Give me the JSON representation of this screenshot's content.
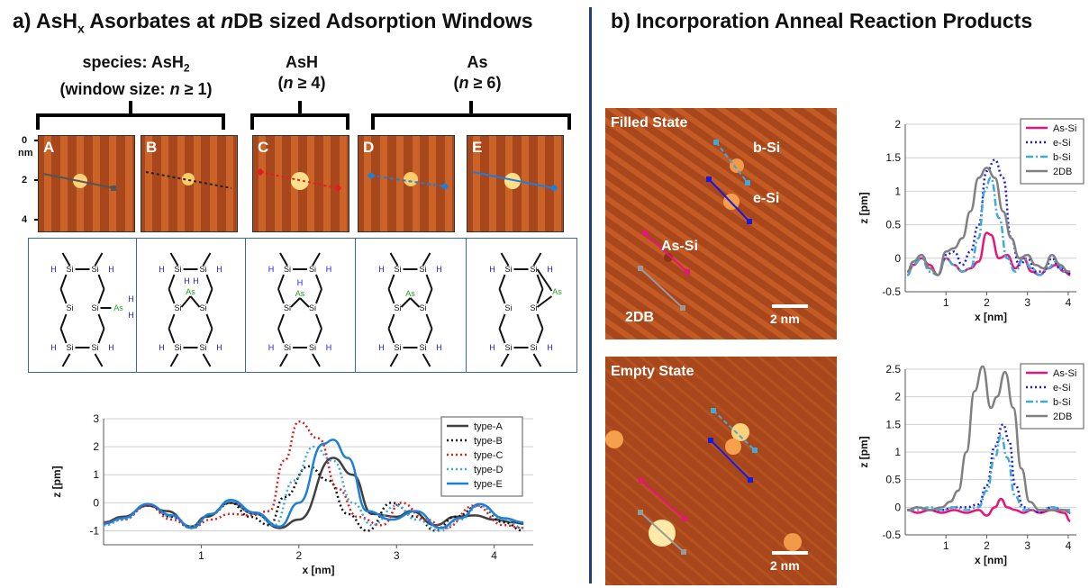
{
  "panel_a": {
    "title_prefix": "a) AsH",
    "title_sub": "x",
    "title_mid": " Asorbates at ",
    "title_n": "n",
    "title_suffix": "DB sized Adsorption Windows",
    "species_groups": [
      {
        "line1_prefix": "species: AsH",
        "line1_sub": "2",
        "line2_prefix": "(window size: ",
        "line2_n": "n",
        "line2_suffix": " ≥ 1)"
      },
      {
        "line1_prefix": "AsH",
        "line1_sub": "",
        "line2_prefix": "(",
        "line2_n": "n",
        "line2_suffix": " ≥ 4)"
      },
      {
        "line1_prefix": "As",
        "line1_sub": "",
        "line2_prefix": "(",
        "line2_n": "n",
        "line2_suffix": " ≥ 6)"
      }
    ],
    "stm_axis": {
      "ticks": [
        "0",
        "2",
        "4"
      ],
      "unit": "nm"
    },
    "stm_panels": [
      "A",
      "B",
      "C",
      "D",
      "E"
    ],
    "schematic_atoms": {
      "si": "Si",
      "h": "H",
      "as": "As"
    }
  },
  "panel_b": {
    "title": "b) Incorporation Anneal Reaction Products",
    "filled_label": "Filled State",
    "empty_label": "Empty State",
    "scale_label": "2 nm",
    "site_labels": [
      "b-Si",
      "e-Si",
      "As-Si",
      "2DB"
    ]
  },
  "colors": {
    "stm_bg": "#a8461c",
    "as_si": "#e6157a",
    "e_si": "#1a1adc",
    "b_si": "#3fa9dc",
    "db2": "#808080",
    "divider": "#1d3f7b"
  },
  "chart_data": [
    {
      "type": "line",
      "xlabel": "x [nm]",
      "ylabel": "z [pm]",
      "xlim": [
        0,
        4.4
      ],
      "ylim": [
        -1.5,
        3
      ],
      "xticks": [
        1,
        2,
        3,
        4
      ],
      "yticks": [
        -1,
        0,
        1,
        2,
        3
      ],
      "legend_position": "top-right",
      "series": [
        {
          "name": "type-A",
          "color": "#404040",
          "dash": "solid",
          "x": [
            0,
            0.2,
            0.45,
            0.65,
            0.9,
            1.05,
            1.3,
            1.55,
            1.8,
            2.0,
            2.35,
            2.55,
            2.75,
            3.0,
            3.15,
            3.4,
            3.6,
            3.8,
            4.0,
            4.2,
            4.3
          ],
          "y": [
            -0.7,
            -0.5,
            -0.1,
            -0.3,
            -0.85,
            -0.5,
            0.0,
            -0.4,
            -0.9,
            -0.6,
            1.6,
            1.0,
            -0.4,
            -0.5,
            -0.3,
            -0.8,
            -0.5,
            -0.45,
            -0.6,
            -0.7,
            -0.75
          ]
        },
        {
          "name": "type-B",
          "color": "#111111",
          "dash": "dot",
          "x": [
            0,
            0.2,
            0.45,
            0.7,
            0.9,
            1.1,
            1.3,
            1.5,
            1.7,
            1.85,
            2.1,
            2.3,
            2.5,
            2.7,
            2.95,
            3.2,
            3.4,
            3.6,
            3.85,
            4.1,
            4.3
          ],
          "y": [
            -0.8,
            -0.6,
            -0.1,
            -0.5,
            -0.9,
            -0.4,
            0.0,
            -0.5,
            -0.8,
            0.2,
            1.3,
            0.8,
            -0.4,
            -1.0,
            0.0,
            -0.5,
            -1.0,
            -0.5,
            -0.1,
            -0.7,
            -1.0
          ]
        },
        {
          "name": "type-C",
          "color": "#e02020",
          "dash": "dot",
          "x": [
            0,
            0.2,
            0.45,
            0.7,
            0.9,
            1.1,
            1.3,
            1.5,
            1.7,
            1.85,
            2.0,
            2.2,
            2.4,
            2.6,
            2.85,
            3.05,
            3.3,
            3.5,
            3.8,
            4.1,
            4.3
          ],
          "y": [
            -0.7,
            -0.6,
            -0.1,
            -0.6,
            -0.9,
            -0.6,
            -0.4,
            -0.45,
            -0.3,
            1.5,
            2.9,
            2.3,
            0.5,
            -0.5,
            -0.8,
            0.0,
            -0.6,
            -0.9,
            -0.1,
            -0.8,
            -0.9
          ]
        },
        {
          "name": "type-D",
          "color": "#3fa9dc",
          "dash": "dot",
          "x": [
            0,
            0.2,
            0.45,
            0.7,
            0.9,
            1.1,
            1.3,
            1.55,
            1.75,
            1.95,
            2.15,
            2.35,
            2.55,
            2.75,
            3.0,
            3.2,
            3.45,
            3.65,
            3.85,
            4.1,
            4.3
          ],
          "y": [
            -0.8,
            -0.6,
            -0.05,
            -0.5,
            -0.85,
            -0.4,
            0.05,
            -0.4,
            -0.8,
            0.8,
            2.0,
            1.5,
            0.0,
            -0.8,
            -0.1,
            -0.6,
            -1.0,
            -0.6,
            -0.1,
            -0.6,
            -0.9
          ]
        },
        {
          "name": "type-E",
          "color": "#1e7fd8",
          "dash": "solid",
          "x": [
            0,
            0.2,
            0.45,
            0.7,
            0.9,
            1.1,
            1.3,
            1.55,
            1.8,
            2.0,
            2.25,
            2.35,
            2.5,
            2.7,
            2.95,
            3.2,
            3.45,
            3.65,
            3.85,
            4.1,
            4.3
          ],
          "y": [
            -0.75,
            -0.55,
            -0.05,
            -0.45,
            -0.9,
            -0.4,
            0.1,
            -0.35,
            -0.85,
            0.0,
            2.1,
            2.25,
            1.6,
            -0.3,
            -0.6,
            -0.3,
            -0.9,
            -0.55,
            -0.05,
            -0.55,
            -0.7
          ]
        }
      ]
    },
    {
      "type": "line",
      "xlabel": "x [nm]",
      "ylabel": "z [pm]",
      "xlim": [
        0,
        4.2
      ],
      "ylim": [
        -0.5,
        2
      ],
      "xticks": [
        1,
        2,
        3,
        4
      ],
      "yticks": [
        -0.5,
        0,
        0.5,
        1,
        1.5,
        2
      ],
      "legend_position": "top-right",
      "series": [
        {
          "name": "As-Si",
          "color": "#e6157a",
          "dash": "solid",
          "x": [
            0.05,
            0.2,
            0.4,
            0.6,
            0.8,
            1.0,
            1.2,
            1.4,
            1.6,
            1.8,
            2.0,
            2.1,
            2.3,
            2.5,
            2.7,
            2.9,
            3.1,
            3.3,
            3.5,
            3.7,
            3.9,
            4.05
          ],
          "y": [
            -0.25,
            -0.1,
            0.0,
            -0.1,
            -0.25,
            0.0,
            -0.1,
            -0.2,
            -0.15,
            -0.05,
            0.38,
            0.35,
            0.0,
            0.05,
            -0.15,
            0.0,
            -0.2,
            -0.25,
            -0.15,
            -0.1,
            -0.2,
            -0.25
          ]
        },
        {
          "name": "e-Si",
          "color": "#1a1adc",
          "dash": "dot",
          "x": [
            0.05,
            0.2,
            0.4,
            0.6,
            0.8,
            1.0,
            1.2,
            1.4,
            1.6,
            1.8,
            2.0,
            2.2,
            2.4,
            2.6,
            2.8,
            3.0,
            3.2,
            3.4,
            3.6,
            3.8,
            4.0,
            4.05
          ],
          "y": [
            -0.2,
            -0.05,
            0.05,
            -0.15,
            -0.25,
            0.05,
            0.1,
            -0.1,
            0.1,
            0.5,
            1.3,
            1.47,
            1.2,
            0.3,
            -0.1,
            0.0,
            -0.2,
            -0.2,
            0.0,
            -0.15,
            -0.2,
            -0.25
          ]
        },
        {
          "name": "b-Si",
          "color": "#3fa9dc",
          "dash": "dashdot",
          "x": [
            0.05,
            0.2,
            0.4,
            0.6,
            0.8,
            1.0,
            1.2,
            1.4,
            1.6,
            1.8,
            1.95,
            2.1,
            2.3,
            2.5,
            2.7,
            2.9,
            3.1,
            3.3,
            3.5,
            3.7,
            3.9,
            4.05
          ],
          "y": [
            -0.25,
            -0.1,
            0.0,
            -0.2,
            -0.25,
            0.0,
            -0.1,
            -0.2,
            -0.15,
            0.3,
            1.0,
            1.2,
            0.6,
            0.0,
            -0.2,
            0.0,
            -0.15,
            -0.25,
            -0.15,
            -0.05,
            -0.2,
            -0.2
          ]
        },
        {
          "name": "2DB",
          "color": "#808080",
          "dash": "solid",
          "x": [
            0.05,
            0.2,
            0.4,
            0.6,
            0.8,
            1.0,
            1.2,
            1.4,
            1.6,
            1.8,
            2.0,
            2.2,
            2.4,
            2.6,
            2.8,
            3.0,
            3.2,
            3.4,
            3.6,
            3.8,
            4.0,
            4.05
          ],
          "y": [
            -0.2,
            -0.05,
            0.05,
            -0.15,
            -0.25,
            0.1,
            0.15,
            0.3,
            0.7,
            1.2,
            1.35,
            1.2,
            0.7,
            0.3,
            0.0,
            0.05,
            -0.1,
            -0.15,
            0.05,
            -0.1,
            -0.2,
            -0.2
          ]
        }
      ]
    },
    {
      "type": "line",
      "xlabel": "x [nm]",
      "ylabel": "z [pm]",
      "xlim": [
        0,
        4.2
      ],
      "ylim": [
        -0.5,
        2.5
      ],
      "xticks": [
        1,
        2,
        3,
        4
      ],
      "yticks": [
        -0.5,
        0,
        0.5,
        1,
        1.5,
        2,
        2.5
      ],
      "legend_position": "top-right",
      "series": [
        {
          "name": "As-Si",
          "color": "#e6157a",
          "dash": "solid",
          "x": [
            0.05,
            0.3,
            0.6,
            0.9,
            1.2,
            1.5,
            1.8,
            2.0,
            2.2,
            2.35,
            2.5,
            2.7,
            2.9,
            3.1,
            3.3,
            3.6,
            3.9,
            4.05
          ],
          "y": [
            -0.05,
            -0.1,
            -0.05,
            -0.1,
            -0.05,
            -0.1,
            -0.05,
            -0.15,
            0.0,
            0.15,
            0.0,
            -0.05,
            -0.1,
            -0.05,
            -0.1,
            -0.05,
            -0.1,
            -0.25
          ]
        },
        {
          "name": "e-Si",
          "color": "#1a1adc",
          "dash": "dot",
          "x": [
            0.05,
            0.3,
            0.6,
            0.9,
            1.2,
            1.5,
            1.8,
            2.0,
            2.2,
            2.4,
            2.55,
            2.7,
            2.9,
            3.1,
            3.3,
            3.6,
            3.9,
            4.05
          ],
          "y": [
            -0.05,
            0.0,
            -0.05,
            -0.05,
            0.0,
            0.0,
            0.05,
            0.4,
            1.1,
            1.5,
            1.2,
            0.4,
            0.0,
            -0.05,
            -0.1,
            0.0,
            -0.05,
            -0.1
          ]
        },
        {
          "name": "b-Si",
          "color": "#3fa9dc",
          "dash": "dashdot",
          "x": [
            0.05,
            0.3,
            0.6,
            0.9,
            1.2,
            1.5,
            1.8,
            2.0,
            2.2,
            2.35,
            2.5,
            2.7,
            2.9,
            3.1,
            3.3,
            3.6,
            3.9,
            4.05
          ],
          "y": [
            -0.05,
            -0.05,
            0.0,
            -0.05,
            0.0,
            -0.05,
            0.0,
            0.3,
            0.9,
            1.3,
            0.9,
            0.2,
            -0.05,
            -0.05,
            -0.05,
            0.0,
            -0.05,
            -0.05
          ]
        },
        {
          "name": "2DB",
          "color": "#808080",
          "dash": "solid",
          "x": [
            0.05,
            0.3,
            0.6,
            0.9,
            1.1,
            1.3,
            1.5,
            1.7,
            1.9,
            2.1,
            2.25,
            2.45,
            2.65,
            2.85,
            3.05,
            3.3,
            3.6,
            3.9,
            4.05
          ],
          "y": [
            -0.05,
            0.0,
            -0.05,
            0.0,
            0.1,
            0.3,
            1.0,
            2.1,
            2.55,
            1.8,
            2.0,
            2.45,
            1.8,
            0.7,
            0.1,
            -0.05,
            -0.05,
            -0.05,
            -0.1
          ]
        }
      ]
    }
  ]
}
